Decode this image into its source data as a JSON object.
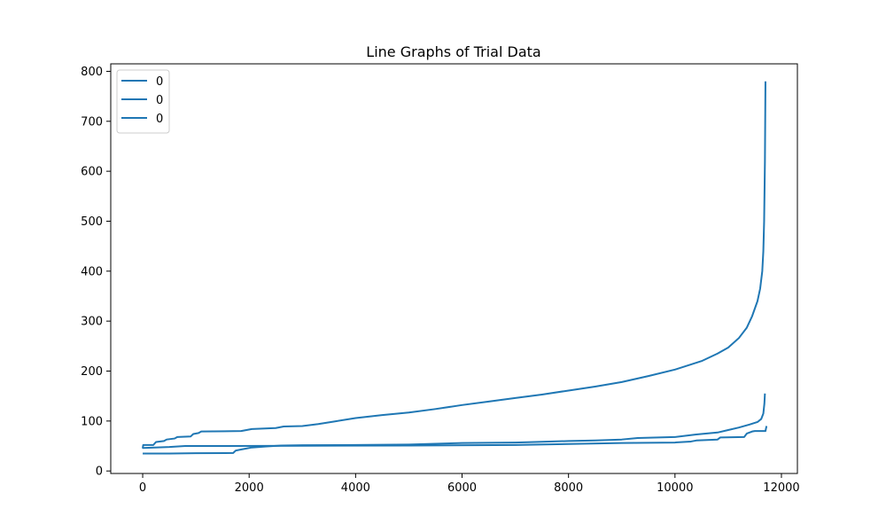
{
  "chart_data": {
    "type": "line",
    "title": "Line Graphs of Trial Data",
    "xlabel": "",
    "ylabel": "",
    "xlim": [
      -600,
      12300
    ],
    "ylim": [
      -5,
      815
    ],
    "xticks": [
      0,
      2000,
      4000,
      6000,
      8000,
      10000,
      12000
    ],
    "yticks": [
      0,
      100,
      200,
      300,
      400,
      500,
      600,
      700,
      800
    ],
    "grid": false,
    "legend_position": "top-left",
    "series": [
      {
        "name": "0",
        "color": "#1f77b4",
        "points": [
          [
            0,
            45
          ],
          [
            10,
            52
          ],
          [
            200,
            52
          ],
          [
            250,
            58
          ],
          [
            400,
            60
          ],
          [
            450,
            63
          ],
          [
            600,
            65
          ],
          [
            650,
            68
          ],
          [
            900,
            69
          ],
          [
            950,
            74
          ],
          [
            1050,
            76
          ],
          [
            1100,
            79
          ],
          [
            1850,
            80
          ],
          [
            1950,
            82
          ],
          [
            2050,
            84
          ],
          [
            2500,
            86
          ],
          [
            2650,
            89
          ],
          [
            3000,
            90
          ],
          [
            3300,
            94
          ],
          [
            3600,
            99
          ],
          [
            4000,
            106
          ],
          [
            4500,
            112
          ],
          [
            5000,
            117
          ],
          [
            5500,
            124
          ],
          [
            6000,
            132
          ],
          [
            6500,
            139
          ],
          [
            7000,
            146
          ],
          [
            7500,
            153
          ],
          [
            8000,
            161
          ],
          [
            8500,
            169
          ],
          [
            9000,
            178
          ],
          [
            9500,
            190
          ],
          [
            10000,
            203
          ],
          [
            10500,
            220
          ],
          [
            10800,
            235
          ],
          [
            11000,
            247
          ],
          [
            11200,
            266
          ],
          [
            11350,
            287
          ],
          [
            11450,
            310
          ],
          [
            11550,
            340
          ],
          [
            11600,
            365
          ],
          [
            11640,
            400
          ],
          [
            11660,
            440
          ],
          [
            11675,
            500
          ],
          [
            11690,
            620
          ],
          [
            11700,
            780
          ]
        ]
      },
      {
        "name": "0",
        "color": "#1f77b4",
        "points": [
          [
            0,
            35
          ],
          [
            500,
            35
          ],
          [
            1000,
            35.5
          ],
          [
            1700,
            36
          ],
          [
            1750,
            41
          ],
          [
            1900,
            44
          ],
          [
            2050,
            47
          ],
          [
            2300,
            49
          ],
          [
            2600,
            51
          ],
          [
            3000,
            51.5
          ],
          [
            4000,
            52
          ],
          [
            5000,
            53
          ],
          [
            5500,
            54.5
          ],
          [
            6000,
            56
          ],
          [
            7000,
            57
          ],
          [
            7500,
            58.5
          ],
          [
            8000,
            60
          ],
          [
            8500,
            61
          ],
          [
            9000,
            63
          ],
          [
            9300,
            66
          ],
          [
            10000,
            68
          ],
          [
            10400,
            73
          ],
          [
            10800,
            77
          ],
          [
            11000,
            82
          ],
          [
            11200,
            87
          ],
          [
            11400,
            93
          ],
          [
            11550,
            98
          ],
          [
            11620,
            104
          ],
          [
            11660,
            115
          ],
          [
            11680,
            135
          ],
          [
            11690,
            155
          ]
        ]
      },
      {
        "name": "0",
        "color": "#1f77b4",
        "points": [
          [
            0,
            46
          ],
          [
            500,
            48
          ],
          [
            800,
            50
          ],
          [
            1500,
            50
          ],
          [
            3000,
            50.5
          ],
          [
            5000,
            51
          ],
          [
            7000,
            52
          ],
          [
            8000,
            54
          ],
          [
            9000,
            56
          ],
          [
            10000,
            57
          ],
          [
            10300,
            59
          ],
          [
            10400,
            61
          ],
          [
            10800,
            63
          ],
          [
            10850,
            67
          ],
          [
            11300,
            68
          ],
          [
            11350,
            75
          ],
          [
            11450,
            79
          ],
          [
            11500,
            80
          ],
          [
            11700,
            80
          ],
          [
            11710,
            85
          ],
          [
            11720,
            90
          ]
        ]
      }
    ]
  }
}
